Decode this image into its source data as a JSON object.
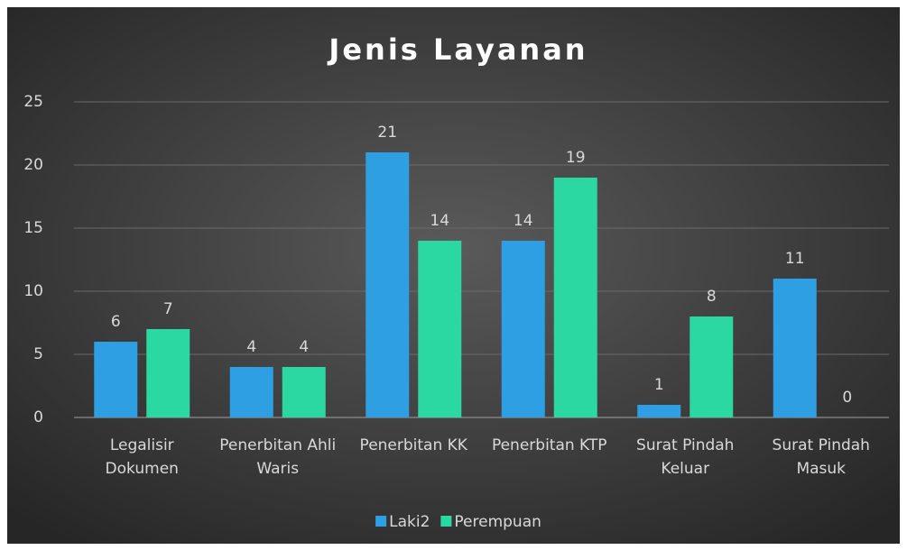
{
  "chart_data": {
    "type": "bar",
    "title": "Jenis Layanan",
    "categories": [
      "Legalisir Dokumen",
      "Penerbitan Ahli Waris",
      "Penerbitan KK",
      "Penerbitan KTP",
      "Surat Pindah Keluar",
      "Surat Pindah Masuk"
    ],
    "series": [
      {
        "name": "Laki2",
        "color": "#2f9fe4",
        "values": [
          6,
          4,
          21,
          14,
          1,
          11
        ]
      },
      {
        "name": "Perempuan",
        "color": "#2bd8a2",
        "values": [
          7,
          4,
          14,
          19,
          8,
          0
        ]
      }
    ],
    "ylim": [
      0,
      25
    ],
    "yticks": [
      0,
      5,
      10,
      15,
      20,
      25
    ],
    "grid": true,
    "legend": "bottom"
  }
}
